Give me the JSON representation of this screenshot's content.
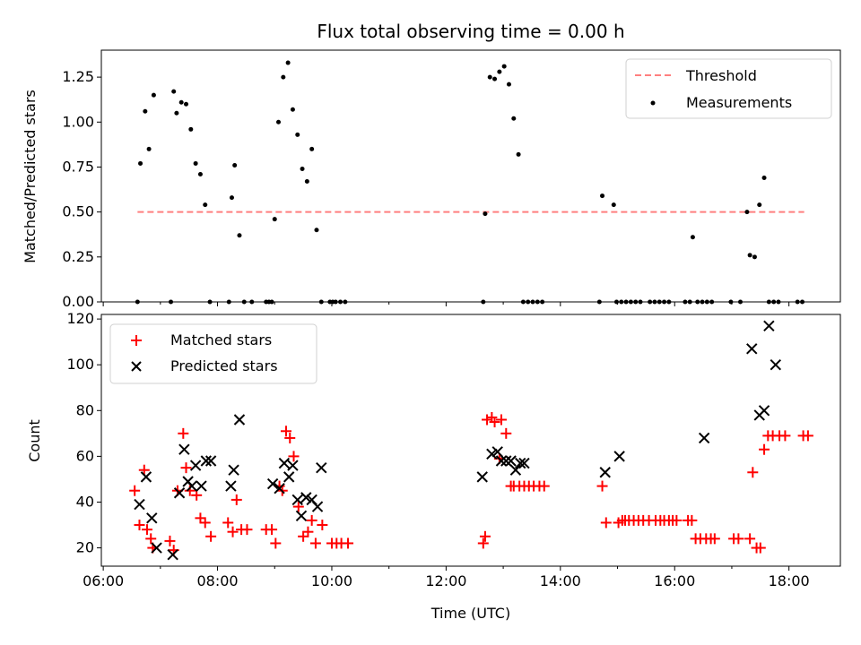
{
  "chart_data": [
    {
      "type": "scatter",
      "title": "Flux total observing time = 0.00 h",
      "xlabel": "",
      "ylabel": "Matched/Predicted stars",
      "xlim": [
        "05:58",
        "18:54"
      ],
      "ylim": [
        0,
        1.4
      ],
      "x_ticks": [
        "06:00",
        "08:00",
        "10:00",
        "12:00",
        "14:00",
        "16:00",
        "18:00"
      ],
      "x_ticklabels_shown": false,
      "y_ticks": [
        0.0,
        0.25,
        0.5,
        0.75,
        1.0,
        1.25
      ],
      "y_ticklabels": [
        "0.00",
        "0.25",
        "0.50",
        "0.75",
        "1.00",
        "1.25"
      ],
      "legend_position": "upper right",
      "legend": [
        "Threshold",
        "Measurements"
      ],
      "colors": {
        "threshold": "#ff7f7f",
        "measurements": "#000000"
      },
      "series": [
        {
          "name": "Threshold",
          "kind": "dashed-line",
          "x": [
            "06:36",
            "18:16"
          ],
          "y": [
            0.5,
            0.5
          ]
        },
        {
          "name": "Measurements",
          "kind": "points",
          "x": [
            "06:36",
            "06:39",
            "06:44",
            "06:48",
            "06:53",
            "07:11",
            "07:14",
            "07:17",
            "07:22",
            "07:27",
            "07:32",
            "07:37",
            "07:42",
            "07:47",
            "07:52",
            "08:12",
            "08:15",
            "08:18",
            "08:23",
            "08:28",
            "08:36",
            "08:51",
            "08:54",
            "08:57",
            "09:00",
            "09:04",
            "09:09",
            "09:14",
            "09:19",
            "09:24",
            "09:29",
            "09:34",
            "09:39",
            "09:44",
            "09:49",
            "09:58",
            "10:01",
            "10:04",
            "10:09",
            "10:14",
            "12:39",
            "12:41",
            "12:46",
            "12:51",
            "12:56",
            "13:01",
            "13:06",
            "13:11",
            "13:16",
            "13:21",
            "13:26",
            "13:31",
            "13:36",
            "13:41",
            "14:41",
            "14:44",
            "14:56",
            "14:59",
            "15:04",
            "15:09",
            "15:14",
            "15:19",
            "15:24",
            "15:34",
            "15:39",
            "15:44",
            "15:49",
            "15:54",
            "16:11",
            "16:16",
            "16:19",
            "16:24",
            "16:29",
            "16:34",
            "16:39",
            "16:59",
            "17:09",
            "17:16",
            "17:19",
            "17:24",
            "17:29",
            "17:34",
            "17:39",
            "17:44",
            "17:49",
            "18:09",
            "18:14"
          ],
          "y": [
            0.0,
            0.77,
            1.06,
            0.85,
            1.15,
            0.0,
            1.17,
            1.05,
            1.11,
            1.1,
            0.96,
            0.77,
            0.71,
            0.54,
            0.0,
            0.0,
            0.58,
            0.76,
            0.37,
            0.0,
            0.0,
            0.0,
            0.0,
            0.0,
            0.46,
            1.0,
            1.25,
            1.33,
            1.07,
            0.93,
            0.74,
            0.67,
            0.85,
            0.4,
            0.0,
            0.0,
            0.0,
            0.0,
            0.0,
            0.0,
            0.0,
            0.49,
            1.25,
            1.24,
            1.28,
            1.31,
            1.21,
            1.02,
            0.82,
            0.0,
            0.0,
            0.0,
            0.0,
            0.0,
            0.0,
            0.59,
            0.54,
            0.0,
            0.0,
            0.0,
            0.0,
            0.0,
            0.0,
            0.0,
            0.0,
            0.0,
            0.0,
            0.0,
            0.0,
            0.0,
            0.36,
            0.0,
            0.0,
            0.0,
            0.0,
            0.0,
            0.0,
            0.5,
            0.26,
            0.25,
            0.54,
            0.69,
            0.0,
            0.0,
            0.0,
            0.0,
            0.0
          ]
        }
      ]
    },
    {
      "type": "scatter",
      "title": "",
      "xlabel": "Time (UTC)",
      "ylabel": "Count",
      "xlim": [
        "05:58",
        "18:54"
      ],
      "ylim": [
        12,
        122
      ],
      "x_ticks": [
        "06:00",
        "08:00",
        "10:00",
        "12:00",
        "14:00",
        "16:00",
        "18:00"
      ],
      "x_ticklabels": [
        "06:00",
        "08:00",
        "10:00",
        "12:00",
        "14:00",
        "16:00",
        "18:00"
      ],
      "y_ticks": [
        20,
        40,
        60,
        80,
        100,
        120
      ],
      "y_ticklabels": [
        "20",
        "40",
        "60",
        "80",
        "100",
        "120"
      ],
      "legend_position": "upper left",
      "legend": [
        "Matched stars",
        "Predicted stars"
      ],
      "colors": {
        "matched": "#ff0000",
        "predicted": "#000000"
      },
      "series": [
        {
          "name": "Matched stars",
          "marker": "plus",
          "x": [
            "06:33",
            "06:38",
            "06:43",
            "06:46",
            "06:50",
            "06:52",
            "07:10",
            "07:14",
            "07:18",
            "07:24",
            "07:27",
            "07:31",
            "07:38",
            "07:42",
            "07:47",
            "07:53",
            "08:11",
            "08:16",
            "08:20",
            "08:25",
            "08:31",
            "08:51",
            "08:57",
            "09:01",
            "09:05",
            "09:08",
            "09:12",
            "09:16",
            "09:20",
            "09:25",
            "09:30",
            "09:35",
            "09:39",
            "09:43",
            "09:50",
            "10:00",
            "10:05",
            "10:10",
            "10:17",
            "12:39",
            "12:41",
            "12:43",
            "12:48",
            "12:51",
            "12:56",
            "12:58",
            "13:03",
            "13:08",
            "13:11",
            "13:17",
            "13:22",
            "13:27",
            "13:32",
            "13:38",
            "13:43",
            "14:44",
            "14:48",
            "15:01",
            "15:05",
            "15:08",
            "15:12",
            "15:17",
            "15:22",
            "15:27",
            "15:33",
            "15:40",
            "15:45",
            "15:49",
            "15:54",
            "15:58",
            "16:02",
            "16:14",
            "16:18",
            "16:22",
            "16:27",
            "16:33",
            "16:38",
            "16:42",
            "17:02",
            "17:07",
            "17:19",
            "17:22",
            "17:26",
            "17:30",
            "17:34",
            "17:38",
            "17:43",
            "17:50",
            "17:56",
            "18:15",
            "18:20"
          ],
          "y": [
            45,
            30,
            54,
            28,
            24,
            20,
            23,
            19,
            45,
            70,
            55,
            45,
            43,
            33,
            31,
            25,
            31,
            27,
            41,
            28,
            28,
            28,
            28,
            22,
            47,
            45,
            71,
            68,
            60,
            38,
            25,
            27,
            32,
            22,
            30,
            22,
            22,
            22,
            22,
            22,
            25,
            76,
            77,
            75,
            59,
            76,
            70,
            47,
            47,
            47,
            47,
            47,
            47,
            47,
            47,
            47,
            31,
            31,
            32,
            32,
            32,
            32,
            32,
            32,
            32,
            32,
            32,
            32,
            32,
            32,
            32,
            32,
            32,
            24,
            24,
            24,
            24,
            24,
            24,
            24,
            24,
            53,
            20,
            20,
            63,
            69,
            69,
            69,
            69,
            69,
            69
          ]
        },
        {
          "name": "Predicted stars",
          "marker": "cross",
          "x": [
            "06:38",
            "06:45",
            "06:51",
            "06:56",
            "07:13",
            "07:20",
            "07:25",
            "07:29",
            "07:33",
            "07:37",
            "07:43",
            "07:48",
            "07:53",
            "08:14",
            "08:17",
            "08:23",
            "08:58",
            "09:05",
            "09:10",
            "09:15",
            "09:19",
            "09:24",
            "09:28",
            "09:33",
            "09:39",
            "09:45",
            "09:49",
            "12:38",
            "12:48",
            "12:54",
            "12:58",
            "13:03",
            "13:08",
            "13:13",
            "13:18",
            "13:22",
            "14:47",
            "15:02",
            "16:31",
            "17:21",
            "17:29",
            "17:34",
            "17:39",
            "17:46"
          ],
          "y": [
            39,
            51,
            33,
            20,
            17,
            44,
            63,
            49,
            47,
            56,
            47,
            58,
            58,
            47,
            54,
            76,
            48,
            46,
            57,
            51,
            56,
            41,
            34,
            42,
            41,
            38,
            55,
            51,
            61,
            62,
            58,
            58,
            58,
            54,
            57,
            57,
            53,
            60,
            68,
            107,
            78,
            80,
            117,
            100
          ]
        }
      ]
    }
  ]
}
